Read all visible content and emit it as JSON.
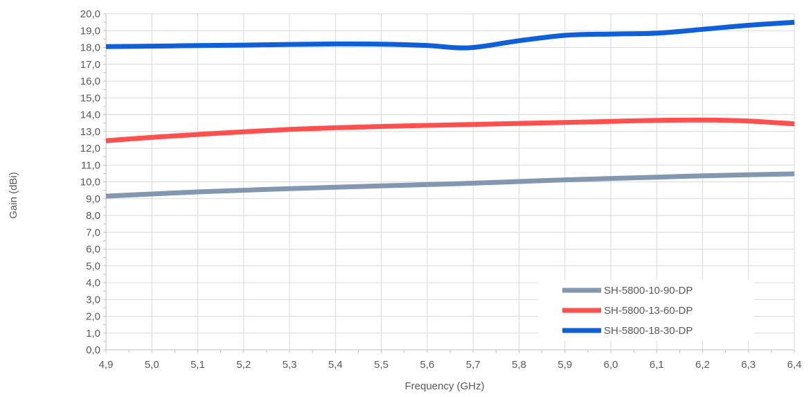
{
  "chart_data": {
    "type": "line",
    "xlabel": "Frequency (GHz)",
    "ylabel": "Gain  (dBi)",
    "xlim": [
      4.9,
      6.4
    ],
    "ylim": [
      0,
      20
    ],
    "x_ticks": [
      "4,9",
      "5,0",
      "5,1",
      "5,2",
      "5,3",
      "5,4",
      "5,5",
      "5,6",
      "5,7",
      "5,8",
      "5,9",
      "6,0",
      "6,1",
      "6,2",
      "6,3",
      "6,4"
    ],
    "y_ticks": [
      "0,0",
      "1,0",
      "2,0",
      "3,0",
      "4,0",
      "5,0",
      "6,0",
      "7,0",
      "8,0",
      "9,0",
      "10,0",
      "11,0",
      "12,0",
      "13,0",
      "14,0",
      "15,0",
      "16,0",
      "17,0",
      "18,0",
      "19,0",
      "20,0"
    ],
    "grid": true,
    "legend_position": "bottom-right",
    "series": [
      {
        "name": "SH-5800-10-90-DP",
        "color": "#8497b0",
        "x": [
          4.9,
          5.0,
          5.1,
          5.2,
          5.3,
          5.4,
          5.5,
          5.6,
          5.7,
          5.8,
          5.9,
          6.0,
          6.1,
          6.2,
          6.3,
          6.4
        ],
        "y": [
          9.15,
          9.28,
          9.4,
          9.5,
          9.6,
          9.68,
          9.76,
          9.84,
          9.92,
          10.02,
          10.12,
          10.2,
          10.28,
          10.36,
          10.42,
          10.48
        ]
      },
      {
        "name": "SH-5800-13-60-DP",
        "color": "#ff5050",
        "x": [
          4.9,
          5.0,
          5.1,
          5.2,
          5.3,
          5.4,
          5.5,
          5.6,
          5.7,
          5.8,
          5.9,
          6.0,
          6.1,
          6.2,
          6.3,
          6.4
        ],
        "y": [
          12.45,
          12.65,
          12.82,
          12.98,
          13.12,
          13.22,
          13.3,
          13.36,
          13.42,
          13.48,
          13.54,
          13.6,
          13.66,
          13.68,
          13.62,
          13.45
        ]
      },
      {
        "name": "SH-5800-18-30-DP",
        "color": "#0f5fd8",
        "x": [
          4.9,
          5.0,
          5.1,
          5.2,
          5.3,
          5.4,
          5.5,
          5.6,
          5.69,
          5.8,
          5.9,
          6.0,
          6.1,
          6.2,
          6.3,
          6.4
        ],
        "y": [
          18.05,
          18.08,
          18.11,
          18.14,
          18.18,
          18.21,
          18.2,
          18.12,
          17.98,
          18.4,
          18.72,
          18.8,
          18.85,
          19.08,
          19.32,
          19.5
        ]
      }
    ]
  }
}
